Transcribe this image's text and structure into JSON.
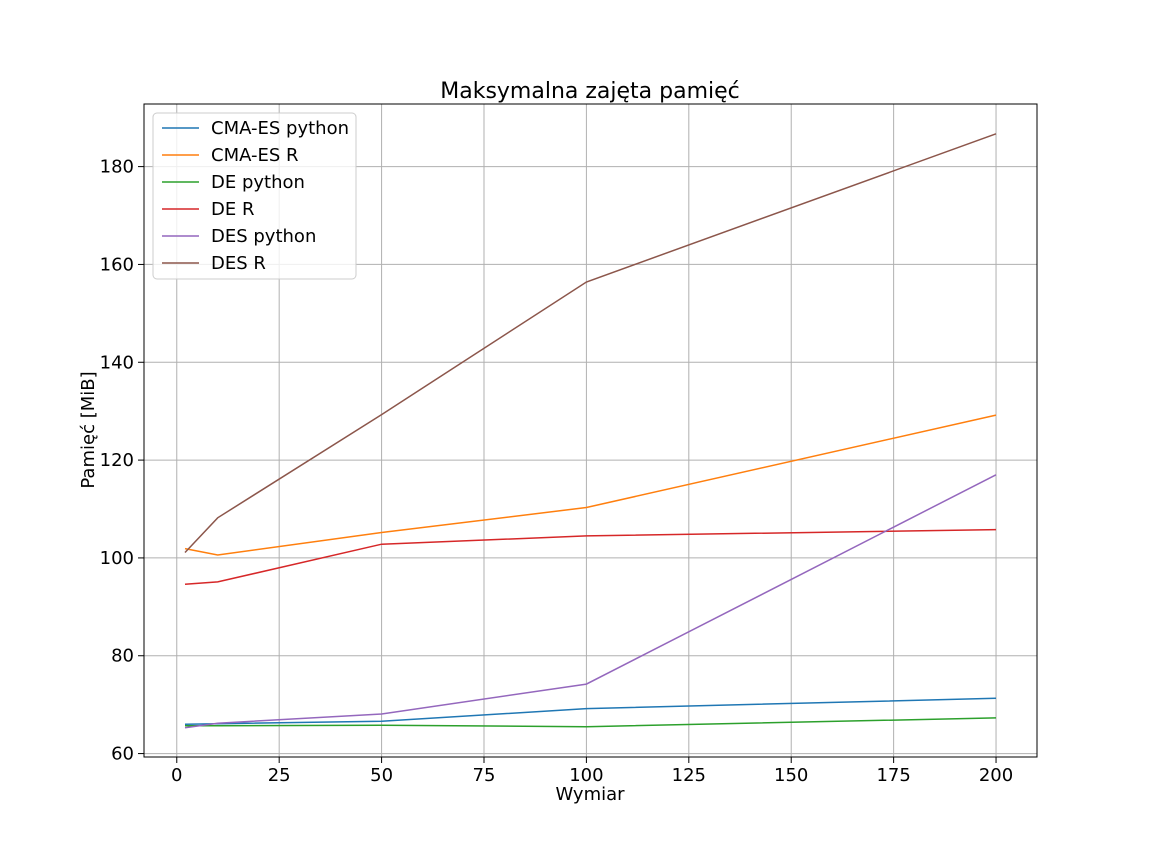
{
  "chart_data": {
    "type": "line",
    "title": "Maksymalna zajęta pamięć",
    "xlabel": "Wymiar",
    "ylabel": "Pamięć [MiB]",
    "xlim": [
      -8,
      210
    ],
    "ylim": [
      59.3,
      192.8
    ],
    "xticks": [
      0,
      25,
      50,
      75,
      100,
      125,
      150,
      175,
      200
    ],
    "yticks": [
      60,
      80,
      100,
      120,
      140,
      160,
      180
    ],
    "grid": true,
    "legend_position": "upper-left",
    "x": [
      2,
      10,
      50,
      100,
      200
    ],
    "series": [
      {
        "name": "CMA-ES python",
        "color": "#1f77b4",
        "values": [
          66.0,
          66.1,
          66.6,
          69.2,
          71.3
        ]
      },
      {
        "name": "CMA-ES R",
        "color": "#ff7f0e",
        "values": [
          101.9,
          100.6,
          105.2,
          110.3,
          129.2
        ]
      },
      {
        "name": "DE python",
        "color": "#2ca02c",
        "values": [
          65.7,
          65.7,
          65.8,
          65.5,
          67.3
        ]
      },
      {
        "name": "DE R",
        "color": "#d62728",
        "values": [
          94.6,
          95.1,
          102.8,
          104.5,
          105.8
        ]
      },
      {
        "name": "DES python",
        "color": "#9467bd",
        "values": [
          65.3,
          66.2,
          68.1,
          74.2,
          117.0
        ]
      },
      {
        "name": "DES R",
        "color": "#8c564b",
        "values": [
          101.1,
          108.2,
          129.3,
          156.4,
          186.7
        ]
      }
    ]
  }
}
